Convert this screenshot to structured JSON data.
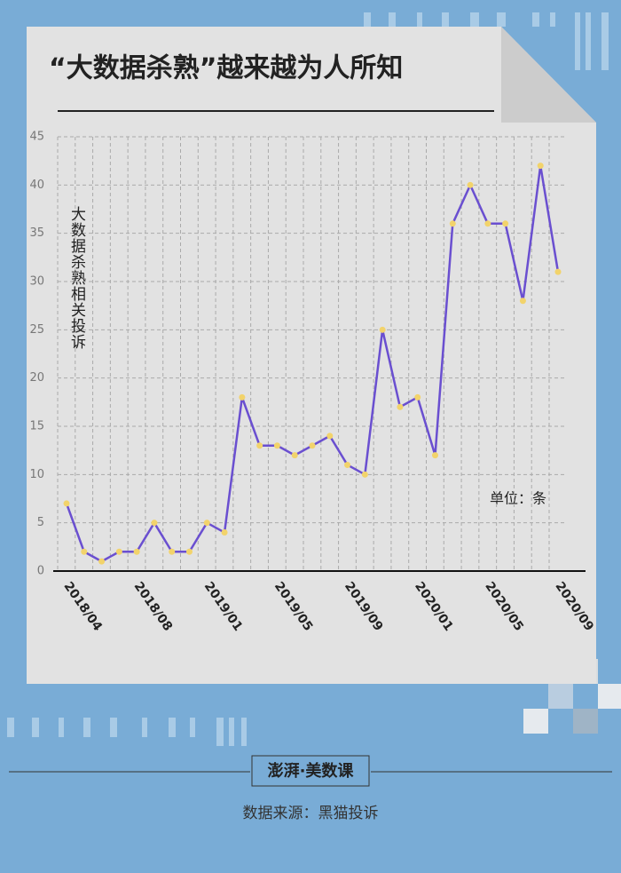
{
  "chart_data": {
    "type": "line",
    "title": "“大数据杀熟”越来越为人所知",
    "y_label": "大数据杀熟相关投诉",
    "unit_note": "单位：条",
    "categories": [
      "2018/04",
      null,
      null,
      null,
      "2018/08",
      null,
      null,
      null,
      "2019/01",
      null,
      null,
      null,
      "2019/05",
      null,
      null,
      null,
      "2019/09",
      null,
      null,
      null,
      "2020/01",
      null,
      null,
      null,
      "2020/05",
      null,
      null,
      null,
      "2020/09"
    ],
    "values": [
      7,
      2,
      1,
      2,
      2,
      5,
      2,
      2,
      5,
      4,
      18,
      13,
      13,
      12,
      13,
      14,
      11,
      10,
      25,
      17,
      18,
      12,
      36,
      40,
      36,
      36,
      28,
      42,
      31
    ],
    "color": "#6a4fd0",
    "marker_color": "#f2d36b",
    "ylim": [
      0,
      45
    ],
    "yticks": [
      0,
      5,
      10,
      15,
      20,
      25,
      30,
      35,
      40,
      45
    ],
    "grid": true
  },
  "logo": "澎湃·美数课",
  "source": "数据来源：黑猫投诉"
}
